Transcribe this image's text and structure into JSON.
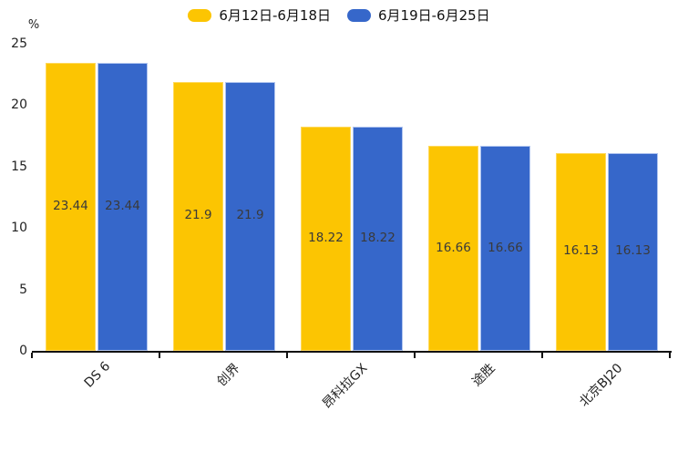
{
  "chart_data": {
    "type": "bar",
    "title": "",
    "xlabel": "",
    "ylabel": "%",
    "categories": [
      "DS 6",
      "创界",
      "昂科拉GX",
      "途胜",
      "北京BJ20"
    ],
    "series": [
      {
        "name": "6月12日-6月18日",
        "color": "#FCC502",
        "border_color": "#FFD95C",
        "values": [
          23.44,
          21.9,
          18.22,
          16.66,
          16.13
        ]
      },
      {
        "name": "6月19日-6月25日",
        "color": "#3667CA",
        "border_color": "#AFC4EF",
        "values": [
          23.44,
          21.9,
          18.22,
          16.66,
          16.13
        ]
      }
    ],
    "value_labels": [
      [
        "23.44",
        "21.9",
        "18.22",
        "16.66",
        "16.13"
      ],
      [
        "23.44",
        "21.9",
        "18.22",
        "16.66",
        "16.13"
      ]
    ],
    "yticks": [
      "0",
      "5",
      "10",
      "15",
      "20",
      "25"
    ],
    "ylim": [
      0,
      25
    ],
    "legend_position": "top",
    "grid": false,
    "text_color": "#222222",
    "value_label_color": "#3a3a3a",
    "axis_color": "#111111"
  }
}
